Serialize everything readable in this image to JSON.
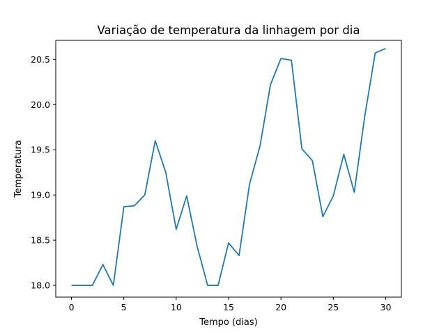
{
  "chart_data": {
    "type": "line",
    "title": "Variação de temperatura da linhagem por dia",
    "xlabel": "Tempo (dias)",
    "ylabel": "Temperatura",
    "xlim": [
      -1.5,
      31.5
    ],
    "ylim": [
      17.87,
      20.71
    ],
    "xticks": [
      0,
      5,
      10,
      15,
      20,
      25,
      30
    ],
    "yticks": [
      18.0,
      18.5,
      19.0,
      19.5,
      20.0,
      20.5
    ],
    "ytick_labels": [
      "18.0",
      "18.5",
      "19.0",
      "19.5",
      "20.0",
      "20.5"
    ],
    "grid": false,
    "series": [
      {
        "color": "#1f77b4",
        "x": [
          0,
          1,
          2,
          3,
          4,
          5,
          6,
          7,
          8,
          9,
          10,
          11,
          12,
          13,
          14,
          15,
          16,
          17,
          18,
          19,
          20,
          21,
          22,
          23,
          24,
          25,
          26,
          27,
          28,
          29,
          30
        ],
        "y": [
          18.0,
          18.0,
          18.0,
          18.23,
          18.0,
          18.87,
          18.88,
          19.0,
          19.6,
          19.25,
          18.62,
          18.99,
          18.43,
          18.0,
          18.0,
          18.47,
          18.33,
          19.12,
          19.54,
          20.22,
          20.51,
          20.49,
          19.51,
          19.38,
          18.76,
          18.99,
          19.45,
          19.03,
          19.87,
          20.57,
          20.62
        ]
      }
    ]
  }
}
